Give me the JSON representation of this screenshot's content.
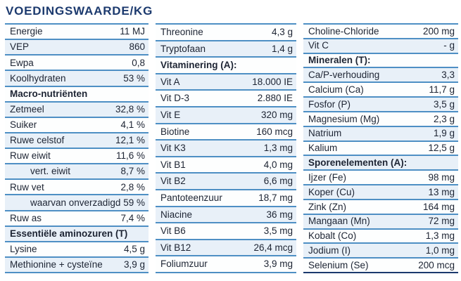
{
  "title": "VOEDINGSWAARDE/KG",
  "colors": {
    "title_navy": "#1c3a6e",
    "separator_blue": "#4e8fc4",
    "alt_row_blue": "#e8f0f8",
    "text": "#1d2433"
  },
  "chart_data": {
    "type": "table",
    "title": "VOEDINGSWAARDE/KG",
    "columns_note": "three side-by-side label/value lists with bold section headers"
  },
  "columns": [
    {
      "rows": [
        {
          "type": "item",
          "label": "Energie",
          "value": "11 MJ"
        },
        {
          "type": "item",
          "label": "VEP",
          "value": "860"
        },
        {
          "type": "item",
          "label": "Ewpa",
          "value": "0,8"
        },
        {
          "type": "item",
          "label": "Koolhydraten",
          "value": "53 %"
        },
        {
          "type": "header",
          "label": "Macro-nutriënten"
        },
        {
          "type": "item",
          "label": "Zetmeel",
          "value": "32,8 %"
        },
        {
          "type": "item",
          "label": "Suiker",
          "value": "4,1 %"
        },
        {
          "type": "item",
          "label": "Ruwe celstof",
          "value": "12,1 %"
        },
        {
          "type": "item",
          "label": "Ruw eiwit",
          "value": "11,6 %"
        },
        {
          "type": "item",
          "indent": true,
          "label": "vert. eiwit",
          "value": "8,7 %"
        },
        {
          "type": "item",
          "label": "Ruw vet",
          "value": "2,8 %"
        },
        {
          "type": "item",
          "indent": true,
          "label": "waarvan onverzadigd",
          "value": "59 %"
        },
        {
          "type": "item",
          "label": "Ruw as",
          "value": "7,4 %"
        },
        {
          "type": "header",
          "label": "Essentiële aminozuren (T)"
        },
        {
          "type": "item",
          "label": "Lysine",
          "value": "4,5 g"
        },
        {
          "type": "item",
          "label": "Methionine + cysteïne",
          "value": "3,9 g"
        }
      ]
    },
    {
      "rows": [
        {
          "type": "item",
          "label": "Threonine",
          "value": "4,3 g"
        },
        {
          "type": "item",
          "label": "Tryptofaan",
          "value": "1,4 g"
        },
        {
          "type": "header",
          "label": "Vitaminering (A):"
        },
        {
          "type": "item",
          "label": "Vit A",
          "value": "18.000 IE"
        },
        {
          "type": "item",
          "label": "Vit D-3",
          "value": "2.880 IE"
        },
        {
          "type": "item",
          "label": "Vit E",
          "value": "320 mg"
        },
        {
          "type": "item",
          "label": "Biotine",
          "value": "160 mcg"
        },
        {
          "type": "item",
          "label": "Vit K3",
          "value": "1,3 mg"
        },
        {
          "type": "item",
          "label": "Vit B1",
          "value": "4,0 mg"
        },
        {
          "type": "item",
          "label": "Vit B2",
          "value": "6,6 mg"
        },
        {
          "type": "item",
          "label": "Pantoteenzuur",
          "value": "18,7 mg"
        },
        {
          "type": "item",
          "label": "Niacine",
          "value": "36 mg"
        },
        {
          "type": "item",
          "label": "Vit B6",
          "value": "3,5 mg"
        },
        {
          "type": "item",
          "label": "Vit B12",
          "value": "26,4 mcg"
        },
        {
          "type": "item",
          "label": "Foliumzuur",
          "value": "3,9 mg"
        }
      ]
    },
    {
      "rows": [
        {
          "type": "item",
          "label": "Choline-Chloride",
          "value": "200 mg"
        },
        {
          "type": "item",
          "label": "Vit C",
          "value": "- g"
        },
        {
          "type": "header",
          "label": "Mineralen (T):"
        },
        {
          "type": "item",
          "label": "Ca/P-verhouding",
          "value": "3,3"
        },
        {
          "type": "item",
          "label": "Calcium (Ca)",
          "value": "11,7 g"
        },
        {
          "type": "item",
          "label": "Fosfor (P)",
          "value": "3,5 g"
        },
        {
          "type": "item",
          "label": "Magnesium (Mg)",
          "value": "2,3 g"
        },
        {
          "type": "item",
          "label": "Natrium",
          "value": "1,9 g"
        },
        {
          "type": "item",
          "label": "Kalium",
          "value": "12,5 g"
        },
        {
          "type": "header",
          "label": "Sporenelementen (A):"
        },
        {
          "type": "item",
          "label": "Ijzer (Fe)",
          "value": "98 mg"
        },
        {
          "type": "item",
          "label": "Koper (Cu)",
          "value": "13 mg"
        },
        {
          "type": "item",
          "label": "Zink (Zn)",
          "value": "164 mg"
        },
        {
          "type": "item",
          "label": "Mangaan (Mn)",
          "value": "72 mg"
        },
        {
          "type": "item",
          "label": "Kobalt (Co)",
          "value": "1,3 mg"
        },
        {
          "type": "item",
          "label": "Jodium (I)",
          "value": "1,0 mg"
        },
        {
          "type": "item",
          "label": "Selenium (Se)",
          "value": "200 mcg"
        }
      ]
    }
  ]
}
